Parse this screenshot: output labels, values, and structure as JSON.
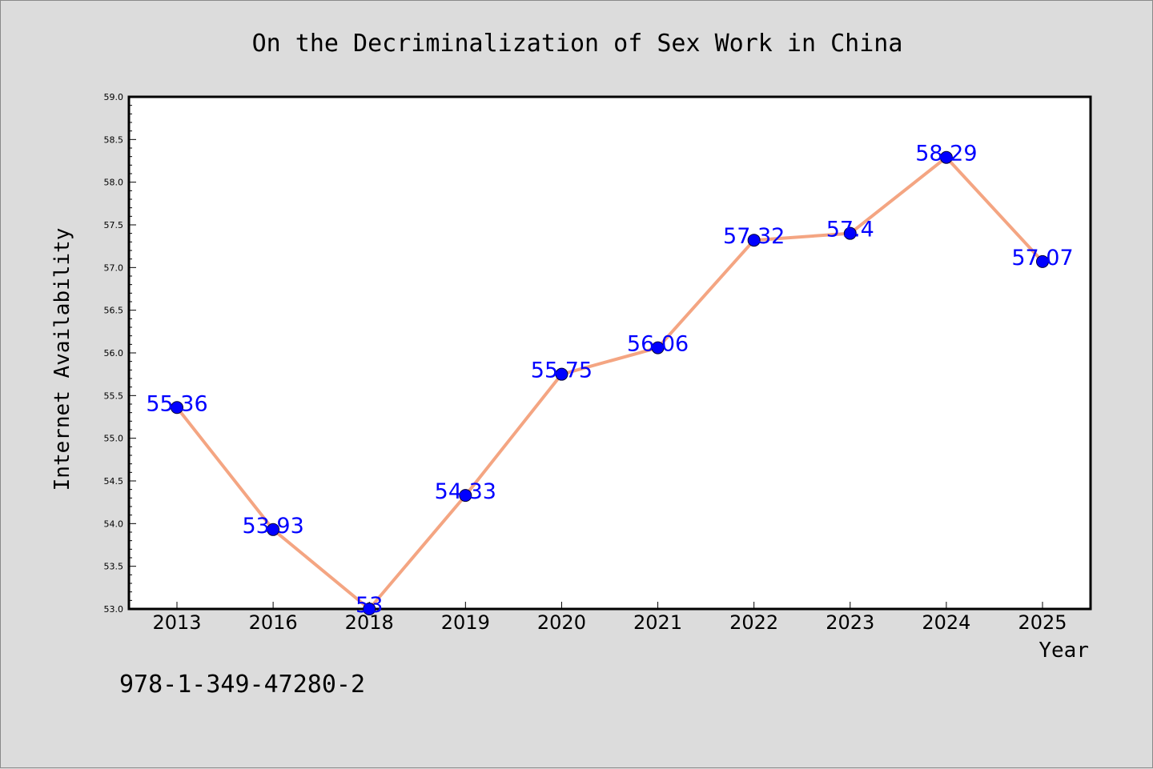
{
  "chart_data": {
    "type": "line",
    "title": "On the Decriminalization of Sex Work in China",
    "xlabel": "Year",
    "ylabel": "Internet Availability",
    "categories": [
      "2013",
      "2016",
      "2018",
      "2019",
      "2020",
      "2021",
      "2022",
      "2023",
      "2024",
      "2025"
    ],
    "series": [
      {
        "values": [
          55.36,
          53.93,
          53,
          54.33,
          55.75,
          56.06,
          57.32,
          57.4,
          58.29,
          57.07
        ],
        "data_labels": [
          "55.36",
          "53.93",
          "53",
          "54.33",
          "55.75",
          "56.06",
          "57.32",
          "57.4",
          "58.29",
          "57.07"
        ]
      }
    ],
    "ylim": [
      53.0,
      59.0
    ],
    "yticks": [
      "53.0",
      "53.5",
      "54.0",
      "54.5",
      "55.0",
      "55.5",
      "56.0",
      "56.5",
      "57.0",
      "57.5",
      "58.0",
      "58.5",
      "59.0"
    ],
    "grid": false,
    "colors": {
      "line": "#f4a582",
      "marker": "#0000ff",
      "label": "#0000ff",
      "plot_bg": "#ffffff",
      "figure_bg": "#dcdcdc"
    }
  },
  "footer": {
    "isbn": "978-1-349-47280-2"
  }
}
